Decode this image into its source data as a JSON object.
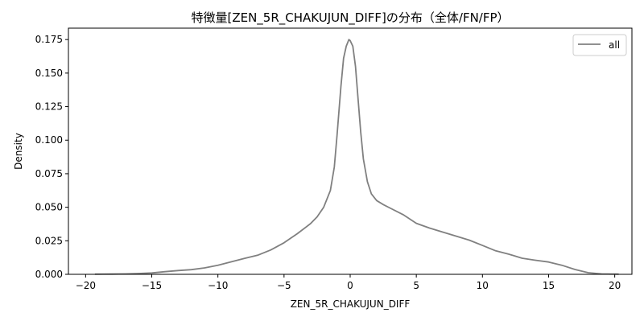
{
  "chart_data": {
    "type": "line",
    "title": "特徴量[ZEN_5R_CHAKUJUN_DIFF]の分布（全体/FN/FP）",
    "xlabel": "ZEN_5R_CHAKUJUN_DIFF",
    "ylabel": "Density",
    "xlim": [
      -21.3,
      21.3
    ],
    "ylim": [
      0,
      0.1835
    ],
    "x_ticks": [
      -20,
      -15,
      -10,
      -5,
      0,
      5,
      10,
      15,
      20
    ],
    "x_tick_labels": [
      "−20",
      "−15",
      "−10",
      "−5",
      "0",
      "5",
      "10",
      "15",
      "20"
    ],
    "y_ticks": [
      0,
      0.025,
      0.05,
      0.075,
      0.1,
      0.125,
      0.15,
      0.175
    ],
    "y_tick_labels": [
      "0.000",
      "0.025",
      "0.050",
      "0.075",
      "0.100",
      "0.125",
      "0.150",
      "0.175"
    ],
    "grid": false,
    "legend_position": "top-right",
    "series": [
      {
        "name": "all",
        "color": "#808080",
        "x": [
          -19.3,
          -18,
          -17,
          -16,
          -15,
          -14,
          -13,
          -12,
          -11,
          -10,
          -9,
          -8,
          -7,
          -6,
          -5,
          -4,
          -3,
          -2.5,
          -2,
          -1.5,
          -1.2,
          -1,
          -0.7,
          -0.5,
          -0.3,
          -0.1,
          0,
          0.2,
          0.4,
          0.6,
          0.8,
          1,
          1.3,
          1.6,
          2,
          2.5,
          3,
          4,
          5,
          6,
          7,
          8,
          9,
          10,
          11,
          12,
          13,
          14,
          15,
          16,
          17,
          18,
          19,
          20.3
        ],
        "y": [
          0.0001,
          0.0002,
          0.0003,
          0.0006,
          0.001,
          0.002,
          0.0028,
          0.0035,
          0.0048,
          0.0068,
          0.0093,
          0.0118,
          0.0142,
          0.0182,
          0.0235,
          0.0303,
          0.0378,
          0.0428,
          0.05,
          0.0625,
          0.08,
          0.103,
          0.14,
          0.161,
          0.17,
          0.175,
          0.1742,
          0.17,
          0.155,
          0.13,
          0.106,
          0.086,
          0.069,
          0.06,
          0.055,
          0.052,
          0.0495,
          0.0445,
          0.038,
          0.0345,
          0.0315,
          0.0285,
          0.0255,
          0.0215,
          0.0175,
          0.015,
          0.012,
          0.0105,
          0.0092,
          0.0068,
          0.0036,
          0.0012,
          0.0003,
          0.0001
        ]
      }
    ]
  }
}
